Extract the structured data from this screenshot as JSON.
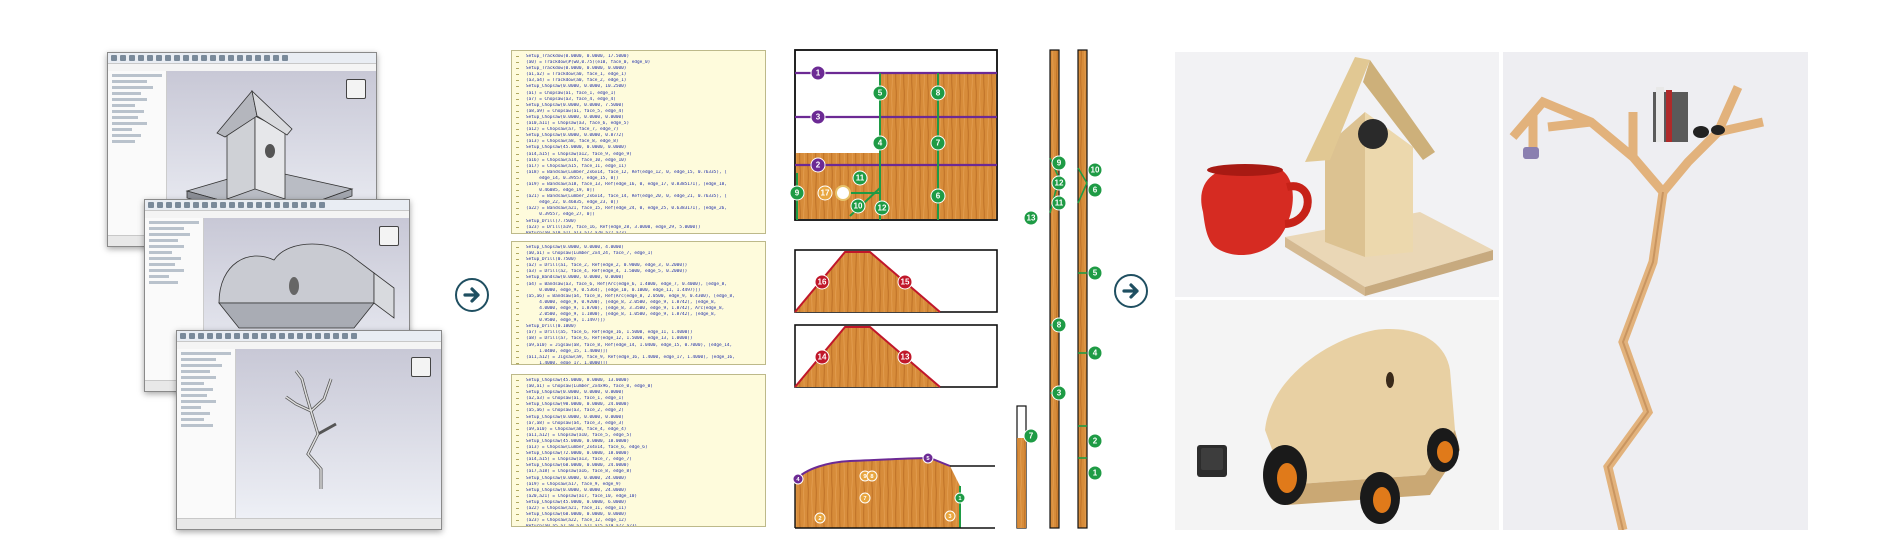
{
  "colors": {
    "wood": "#d78c3a",
    "wood_dark": "#b86a22",
    "green_marker": "#1e9b45",
    "purple_marker": "#6c2a94",
    "red_marker": "#c0172a",
    "code_bg": "#fefbdc",
    "code_text": "#1d2ca8",
    "arrow": "#1f4f61"
  },
  "icons": {
    "arrow1": "arrow-right-circle-icon",
    "arrow2": "arrow-right-circle-icon"
  },
  "code_panel_1": [
    "Setup_Trackdow(0.0000, 0.0000, 17.5000)",
    "(a0) = Trackdow(#(w0,0.75)(e10, face_0, edge_0)",
    "Setup_Trackdow(0.0000, 0.0000, 0.0000)",
    "(a1,a2) = Trackdow(a0, face_1, edge_1)",
    "(a3,a4) = Trackdow(a0, face_2, edge_1)",
    "Setup_Chopsaw(0.0000, 0.0000, 10.2500)",
    "(a1) = Chopsaw(a1, face_1, edge_1)",
    "(a7) = Chopsaw(a3, face_4, edge_4)",
    "Setup_Chopsaw(0.0000, 0.0000, 7.5000)",
    "(a8,a9) = Chopsaw(a1, face_5, edge_4)",
    "Setup_Chopsaw(0.0000, 0.0000, 0.0000)",
    "(a10,a11) = Chopsaw(a3, face_6, edge_5)",
    "(a12) = Chopsaw(a7, face_7, edge_7)",
    "Setup_Chopsaw(0.0000, 0.0000, 0.8772)",
    "(a13) = Chopsaw(a8, face_8, edge_8)",
    "Setup_Chopsaw(45.0000, 0.0000, 0.0000)",
    "(a14,a15) = Chopsaw(a12, face_9, edge_9)",
    "(a16) = Chopsaw(a14, face_10, edge_10)",
    "(a17) = Chopsaw(a15, face_11, edge_11)",
    "(a18) = Bandsaw(Lumber_2x6x14, face_12, Ref(edge_12, 0, edge_15, 0.76335), [",
    "     edge_14, 0.39557, edge_15, 0])",
    "(a19) = Bandsaw(a18, face_13, Ref(edge_16, 0, edge_17, 0.8385171), [edge_18,",
    "     0.46085, edge_19, 0])",
    "(a21) = Bandsaw(Lumber_2x6x14, face_14, Ref(edge_20, 0, edge_21, 0.76335), [",
    "     edge_22, 0.46835, edge_23, 0])",
    "(a22) = Bandsaw(a21, face_15, Ref(edge_24, 0, edge_25, 0.6383171), [edge_26,",
    "     0.39557, edge_27, 0])",
    "Setup_Drill(7.7500)",
    "(a23) = Drill(a19, face_16, Ref(edge_28, 3.0000, edge_29, 5.0000))",
    "Return(a9,a10,a11,a13,a17,a20,a22,a23)"
  ],
  "code_panel_2": [
    "Setup_Chopsaw(0.0000, 0.0000, 4.0000)",
    "(a0,a1) = Chopsaw(Lumber_2x4_24, face_7, edge_1)",
    "Setup_Drill(0.7500)",
    "(a2) = Drill(a1, face_2, Ref(edge_2, 0.9000, edge_3, 0.2000))",
    "(a3) = Drill(a2, face_4, Ref(edge_4, 1.5000, edge_5, 0.2000))",
    "Setup_Bandsaw(0.0000, 0.0000, 0.0000)",
    "(a4) = Bandsaw(a3, face_6, Ref(Arc(edge_6, 1.4000, edge_7, 0.4000), [edge_8,",
    "     0.0000, edge_9, 0.5364), [edge_10, 0.1000, edge_11, 1.4497)])",
    "(a5,a6) = Bandsaw(a4, face_8, Ref(Arc(edge_8, 2.0500, edge_9, 0.4300), [edge_8,",
    "     4.0000, edge_9, 0.9200), [edge_8, 2.0500, edge_9, 1.8742), [edge_8,",
    "     4.0000, edge_9, 1.8700), [edge_8, 3.3500, edge_9, 1.8742), Arc(edge_8,",
    "     2.0500, edge_9, 1.1800), [edge_8, 1.0500, edge_9, 1.8742), [edge_8,",
    "     0.9500, edge_9, 1.1497)])",
    "Setup_Drill(0.1000)",
    "(a7) = Drill(a5, face_6, Ref(edge_16, 1.5000, edge_11, 1.4000))",
    "(a8) = Drill(a7, face_6, Ref(edge_12, 1.5000, edge_13, 1.0000))",
    "(a9,a10) = Jigsaw(a8, face_8, Ref(edge_14, 1.0400, edge_15, 0.7000), [edge_14,",
    "     1.0400, edge_15, 1.4000)])",
    "(a11,a12) = Jigsaw(a9, face_9, Ref(edge_16, 1.4000, edge_17, 1.4000), [edge_16,",
    "     1.4000, edge_17, 1.0000)])",
    "Return(a12)"
  ],
  "code_panel_3": [
    "Setup_Chopsaw(45.0000, 0.0000, 13.0000)",
    "(a0,a1) = Chopsaw(Lumber_2x4x96, face_0, edge_0)",
    "Setup_Chopsaw(0.0000, 0.0000, 0.0000)",
    "(a2,a3) = Chopsaw(a1, face_1, edge_1)",
    "Setup_Chopsaw(90.0000, 0.0000, 24.0000)",
    "(a5,a6) = Chopsaw(a3, face_2, edge_2)",
    "Setup_Chopsaw(0.0000, 0.0000, 0.0000)",
    "(a7,a8) = Chopsaw(a4, face_3, edge_3)",
    "(a9,a10) = Chopsaw(a8, face_4, edge_4)",
    "(a11,a12) = Chopsaw(a10, face_5, edge_5)",
    "Setup_Chopsaw(45.0000, 0.0000, 18.0000)",
    "(a13) = Chopsaw(Lumber_2x4x14, face_6, edge_6)",
    "Setup_Chopsaw(72.0000, 0.0000, 18.0000)",
    "(a14,a15) = Chopsaw(a13, face_7, edge_7)",
    "Setup_Chopsaw(60.0000, 0.0000, 24.0000)",
    "(a17,a18) = Chopsaw(a16, face_8, edge_8)",
    "Setup_Chopsaw(0.0000, 0.0000, 24.0000)",
    "(a19) = Chopsaw(a17, face_9, edge_9)",
    "Setup_Chopsaw(0.0000, 0.0000, 24.0000)",
    "(a20,a21) = Chopsaw(a17, face_10, edge_10)",
    "Setup_Chopsaw(45.0000, 0.0000, 6.0000)",
    "(a22) = Chopsaw(a21, face_11, edge_11)",
    "Setup_Chopsaw(60.0000, 0.0000, 0.0000)",
    "(a23) = Chopsaw(a22, face_12, edge_12)",
    "Return(a0,a5,a7,a9,a7,a11,a15,a19,a22,a23)"
  ],
  "markers": {
    "a": [
      "1",
      "3",
      "5",
      "8",
      "4",
      "7",
      "2",
      "9",
      "17",
      "11",
      "10",
      "12",
      "6"
    ],
    "b": [
      "16",
      "15",
      "14",
      "13"
    ],
    "c": [
      "4",
      "9",
      "8",
      "5",
      "7",
      "2",
      "3",
      "1"
    ],
    "d": [
      "9",
      "10",
      "12",
      "6",
      "13",
      "11",
      "5",
      "8",
      "4",
      "3",
      "2",
      "1",
      "7"
    ]
  }
}
